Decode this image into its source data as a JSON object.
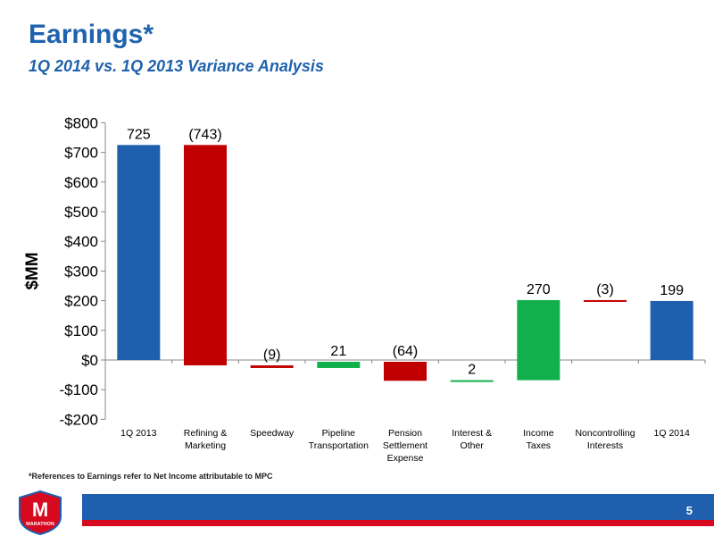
{
  "header": {
    "title": "Earnings*",
    "subtitle": "1Q 2014 vs. 1Q 2013 Variance Analysis"
  },
  "footnote": "*References to Earnings refer to Net Income attributable to MPC",
  "footer": {
    "page_number": "5",
    "logo_text": "MARATHON",
    "logo_letter": "M"
  },
  "colors": {
    "title": "#1f62ad",
    "total_bar": "#1e5fae",
    "negative_bar": "#c00000",
    "positive_bar": "#12b04c",
    "footer_blue": "#1e5fae",
    "footer_red": "#d6091f"
  },
  "chart_data": {
    "type": "bar",
    "subtype": "waterfall",
    "ylabel": "$MM",
    "ylim": [
      -200,
      800
    ],
    "yticks": [
      -200,
      -100,
      0,
      100,
      200,
      300,
      400,
      500,
      600,
      700,
      800
    ],
    "ytick_labels": [
      "-$200",
      "-$100",
      "$0",
      "$100",
      "$200",
      "$300",
      "$400",
      "$500",
      "$600",
      "$700",
      "$800"
    ],
    "grid": false,
    "legend": "none",
    "bars": [
      {
        "category": [
          "1Q 2013"
        ],
        "label": "725",
        "kind": "total",
        "start": 0,
        "end": 725
      },
      {
        "category": [
          "Refining &",
          "Marketing"
        ],
        "label": "(743)",
        "kind": "negative",
        "start": 725,
        "end": -18
      },
      {
        "category": [
          "Speedway"
        ],
        "label": "(9)",
        "kind": "negative",
        "start": -18,
        "end": -27
      },
      {
        "category": [
          "Pipeline",
          "Transportation"
        ],
        "label": "21",
        "kind": "positive",
        "start": -27,
        "end": -6
      },
      {
        "category": [
          "Pension",
          "Settlement",
          "Expense"
        ],
        "label": "(64)",
        "kind": "negative",
        "start": -6,
        "end": -70
      },
      {
        "category": [
          "Interest &",
          "Other"
        ],
        "label": "2",
        "kind": "positive",
        "start": -70,
        "end": -68
      },
      {
        "category": [
          "Income",
          "Taxes"
        ],
        "label": "270",
        "kind": "positive",
        "start": -68,
        "end": 202
      },
      {
        "category": [
          "Noncontrolling",
          "Interests"
        ],
        "label": "(3)",
        "kind": "negative",
        "start": 202,
        "end": 199
      },
      {
        "category": [
          "1Q 2014"
        ],
        "label": "199",
        "kind": "total",
        "start": 0,
        "end": 199
      }
    ]
  }
}
